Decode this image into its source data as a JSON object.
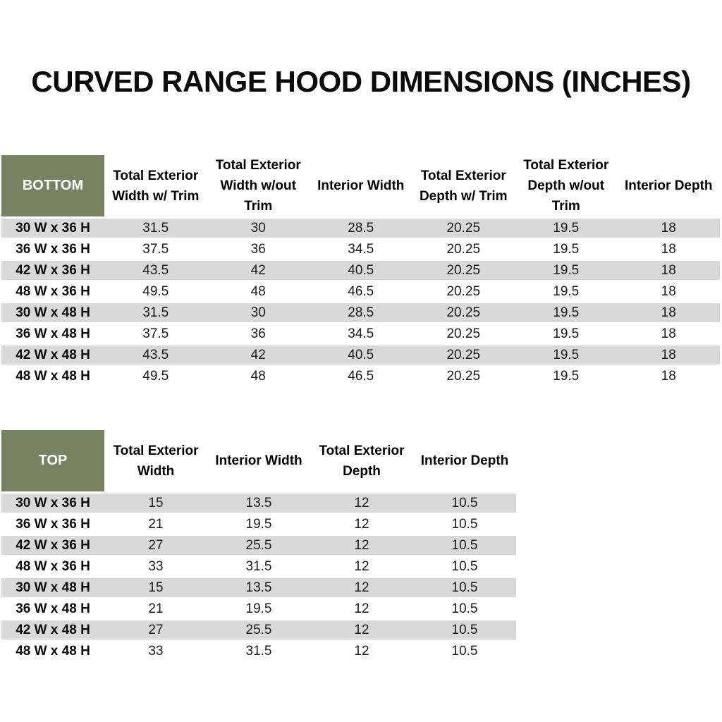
{
  "page": {
    "title": "CURVED RANGE HOOD DIMENSIONS (INCHES)"
  },
  "colors": {
    "header_green": "#778263",
    "stripe_gray": "#d9d9d9",
    "corner_text": "#ffffff",
    "body_text": "#1a1a1a"
  },
  "tables": [
    {
      "corner_label": "BOTTOM",
      "columns": [
        "Total Exterior Width w/ Trim",
        "Total Exterior Width w/out Trim",
        "Interior Width",
        "Total Exterior Depth w/ Trim",
        "Total Exterior Depth w/out Trim",
        "Interior Depth"
      ],
      "rows": [
        {
          "label": "30 W x 36 H",
          "values": [
            "31.5",
            "30",
            "28.5",
            "20.25",
            "19.5",
            "18"
          ]
        },
        {
          "label": "36 W x 36 H",
          "values": [
            "37.5",
            "36",
            "34.5",
            "20.25",
            "19.5",
            "18"
          ]
        },
        {
          "label": "42 W x 36 H",
          "values": [
            "43.5",
            "42",
            "40.5",
            "20.25",
            "19.5",
            "18"
          ]
        },
        {
          "label": "48 W x 36 H",
          "values": [
            "49.5",
            "48",
            "46.5",
            "20.25",
            "19.5",
            "18"
          ]
        },
        {
          "label": "30 W x 48 H",
          "values": [
            "31.5",
            "30",
            "28.5",
            "20.25",
            "19.5",
            "18"
          ]
        },
        {
          "label": "36 W x 48 H",
          "values": [
            "37.5",
            "36",
            "34.5",
            "20.25",
            "19.5",
            "18"
          ]
        },
        {
          "label": "42 W x 48 H",
          "values": [
            "43.5",
            "42",
            "40.5",
            "20.25",
            "19.5",
            "18"
          ]
        },
        {
          "label": "48 W x 48 H",
          "values": [
            "49.5",
            "48",
            "46.5",
            "20.25",
            "19.5",
            "18"
          ]
        }
      ]
    },
    {
      "corner_label": "TOP",
      "columns": [
        "Total Exterior Width",
        "Interior Width",
        "Total Exterior Depth",
        "Interior Depth"
      ],
      "rows": [
        {
          "label": "30 W x 36 H",
          "values": [
            "15",
            "13.5",
            "12",
            "10.5"
          ]
        },
        {
          "label": "36 W x 36 H",
          "values": [
            "21",
            "19.5",
            "12",
            "10.5"
          ]
        },
        {
          "label": "42 W x 36 H",
          "values": [
            "27",
            "25.5",
            "12",
            "10.5"
          ]
        },
        {
          "label": "48 W x 36 H",
          "values": [
            "33",
            "31.5",
            "12",
            "10.5"
          ]
        },
        {
          "label": "30 W x 48 H",
          "values": [
            "15",
            "13.5",
            "12",
            "10.5"
          ]
        },
        {
          "label": "36 W x 48 H",
          "values": [
            "21",
            "19.5",
            "12",
            "10.5"
          ]
        },
        {
          "label": "42 W x 48 H",
          "values": [
            "27",
            "25.5",
            "12",
            "10.5"
          ]
        },
        {
          "label": "48 W x 48 H",
          "values": [
            "33",
            "31.5",
            "12",
            "10.5"
          ]
        }
      ]
    }
  ]
}
